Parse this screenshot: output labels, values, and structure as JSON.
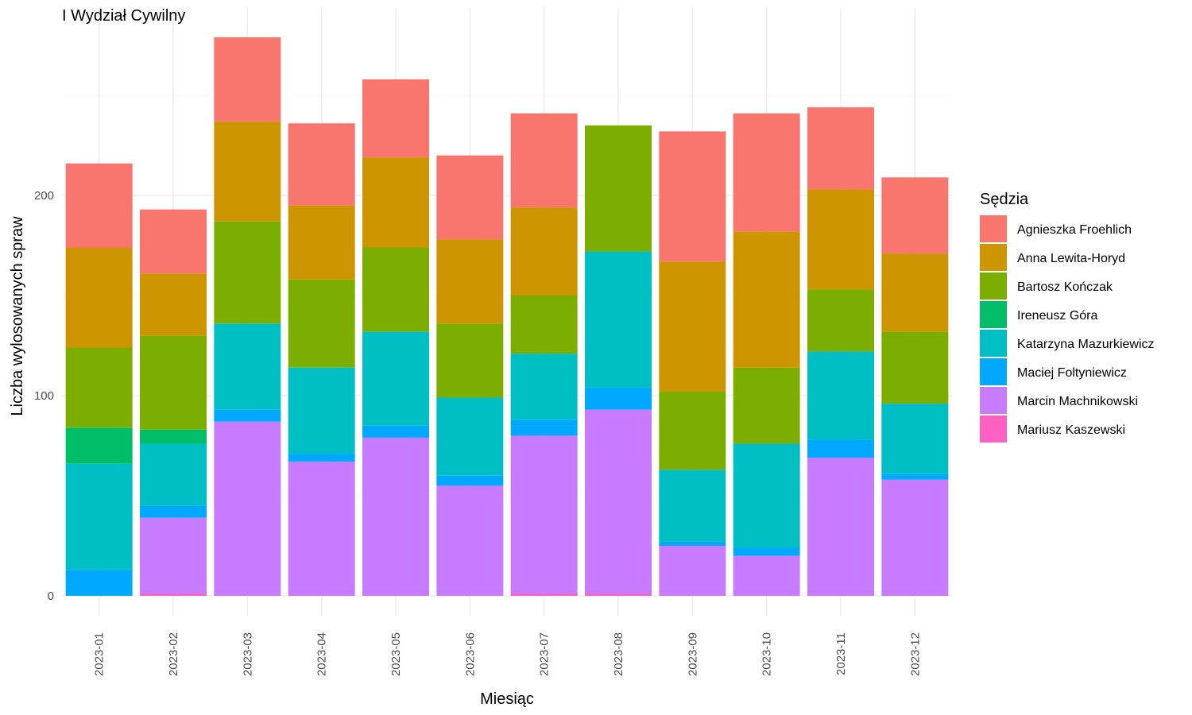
{
  "chart_data": {
    "type": "bar",
    "stacked": true,
    "title": "I Wydział Cywilny",
    "xlabel": "Miesiąc",
    "ylabel": "Liczba wylosowanych spraw",
    "ylim": [
      -10,
      280
    ],
    "yticks": [
      0,
      100,
      200
    ],
    "grid": true,
    "legend_position": "right",
    "legend_title": "Sędzia",
    "categories": [
      "2023-01",
      "2023-02",
      "2023-03",
      "2023-04",
      "2023-05",
      "2023-06",
      "2023-07",
      "2023-08",
      "2023-09",
      "2023-10",
      "2023-11",
      "2023-12"
    ],
    "series": [
      {
        "name": "Mariusz Kaszewski",
        "color": "#FF61C3",
        "values": [
          0,
          1,
          0,
          0,
          0,
          0,
          1,
          1,
          0,
          0,
          0,
          0
        ]
      },
      {
        "name": "Marcin Machnikowski",
        "color": "#C77CFF",
        "values": [
          0,
          38,
          87,
          67,
          79,
          55,
          79,
          92,
          25,
          20,
          69,
          58
        ]
      },
      {
        "name": "Maciej Foltyniewicz",
        "color": "#00A9FF",
        "values": [
          13,
          6,
          6,
          4,
          6,
          5,
          8,
          11,
          2,
          4,
          9,
          3
        ]
      },
      {
        "name": "Katarzyna Mazurkiewicz",
        "color": "#00BFC4",
        "values": [
          53,
          31,
          43,
          43,
          47,
          39,
          33,
          68,
          36,
          52,
          44,
          35
        ]
      },
      {
        "name": "Ireneusz Góra",
        "color": "#00BE67",
        "values": [
          18,
          7,
          0,
          0,
          0,
          0,
          0,
          0,
          0,
          0,
          0,
          0
        ]
      },
      {
        "name": "Bartosz Kończak",
        "color": "#7CAE00",
        "values": [
          40,
          47,
          51,
          44,
          42,
          37,
          29,
          63,
          39,
          38,
          31,
          36
        ]
      },
      {
        "name": "Anna Lewita-Horyd",
        "color": "#CD9600",
        "values": [
          50,
          31,
          50,
          37,
          45,
          42,
          44,
          0,
          65,
          68,
          50,
          39
        ]
      },
      {
        "name": "Agnieszka Froehlich",
        "color": "#F8766D",
        "values": [
          42,
          32,
          42,
          41,
          39,
          42,
          47,
          0,
          65,
          59,
          41,
          38
        ]
      }
    ],
    "legend_order": [
      "Agnieszka Froehlich",
      "Anna Lewita-Horyd",
      "Bartosz Kończak",
      "Ireneusz Góra",
      "Katarzyna Mazurkiewicz",
      "Maciej Foltyniewicz",
      "Marcin Machnikowski",
      "Mariusz Kaszewski"
    ]
  }
}
